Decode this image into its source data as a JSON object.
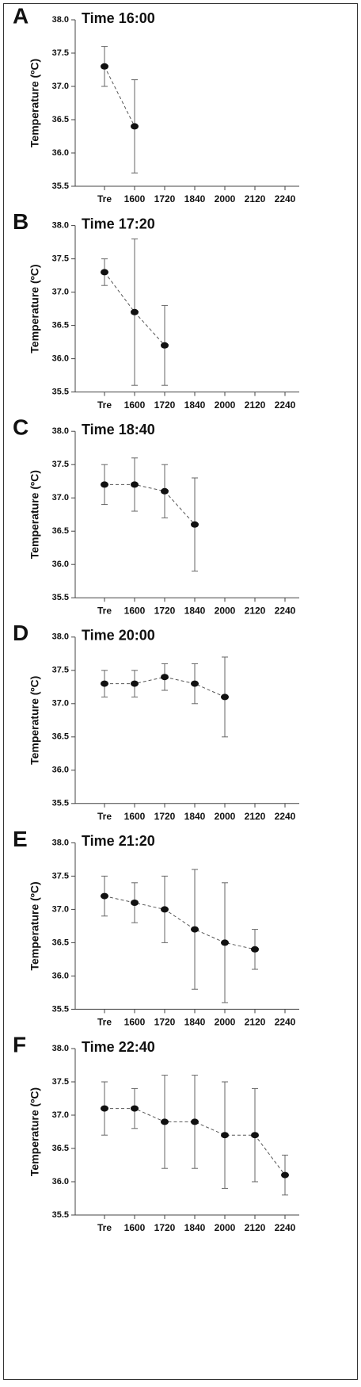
{
  "chart_data": [
    {
      "type": "line",
      "label": "A",
      "title": "Time 16:00",
      "y_label": "Temperature (ºC)",
      "categories": [
        "Tre",
        "1600",
        "1720",
        "1840",
        "2000",
        "2120",
        "2240"
      ],
      "values": [
        37.3,
        36.4,
        null,
        null,
        null,
        null,
        null
      ],
      "errors": [
        0.3,
        0.7,
        null,
        null,
        null,
        null,
        null
      ],
      "color": "#111111",
      "ylim": [
        35.5,
        38.0
      ],
      "yticks": [
        {
          "value": 38.0,
          "label": "38.0"
        },
        37.5,
        {
          "value": 37.0,
          "label": "37.0"
        },
        36.5,
        {
          "value": 36.0,
          "label": "36.0"
        },
        35.5
      ]
    },
    {
      "type": "line",
      "label": "B",
      "title": "Time 17:20",
      "y_label": "Temperature (ºC)",
      "categories": [
        "Tre",
        "1600",
        "1720",
        "1840",
        "2000",
        "2120",
        "2240"
      ],
      "values": [
        37.3,
        36.7,
        36.2,
        null,
        null,
        null,
        null
      ],
      "errors": [
        0.2,
        1.1,
        0.6,
        null,
        null,
        null,
        null
      ],
      "color": "#111111",
      "ylim": [
        35.5,
        38.0
      ],
      "yticks": [
        {
          "value": 38.0,
          "label": "38.0"
        },
        37.5,
        {
          "value": 37.0,
          "label": "37.0"
        },
        36.5,
        {
          "value": 36.0,
          "label": "36.0"
        },
        35.5
      ]
    },
    {
      "type": "line",
      "label": "C",
      "title": "Time 18:40",
      "y_label": "Temperature (ºC)",
      "categories": [
        "Tre",
        "1600",
        "1720",
        "1840",
        "2000",
        "2120",
        "2240"
      ],
      "values": [
        37.2,
        37.2,
        37.1,
        36.6,
        null,
        null,
        null
      ],
      "errors": [
        0.3,
        0.4,
        0.4,
        0.7,
        null,
        null,
        null
      ],
      "color": "#111111",
      "ylim": [
        35.5,
        38.0
      ],
      "yticks": [
        {
          "value": 38.0,
          "label": "38.0"
        },
        37.5,
        {
          "value": 37.0,
          "label": "37.0"
        },
        36.5,
        {
          "value": 36.0,
          "label": "36.0"
        },
        35.5
      ]
    },
    {
      "type": "line",
      "label": "D",
      "title": "Time 20:00",
      "y_label": "Temperature (ºC)",
      "categories": [
        "Tre",
        "1600",
        "1720",
        "1840",
        "2000",
        "2120",
        "2240"
      ],
      "values": [
        37.3,
        37.3,
        37.4,
        37.3,
        37.1,
        null,
        null
      ],
      "errors": [
        0.2,
        0.2,
        0.2,
        0.3,
        0.6,
        null,
        null
      ],
      "color": "#111111",
      "ylim": [
        35.5,
        38.0
      ],
      "yticks": [
        {
          "value": 38.0,
          "label": "38.0"
        },
        37.5,
        {
          "value": 37.0,
          "label": "37.0"
        },
        36.5,
        {
          "value": 36.0,
          "label": "36.0"
        },
        35.5
      ]
    },
    {
      "type": "line",
      "label": "E",
      "title": "Time 21:20",
      "y_label": "Temperature (ºC)",
      "categories": [
        "Tre",
        "1600",
        "1720",
        "1840",
        "2000",
        "2120",
        "2240"
      ],
      "values": [
        37.2,
        37.1,
        37.0,
        36.7,
        36.5,
        36.4,
        null
      ],
      "errors": [
        0.3,
        0.3,
        0.5,
        0.9,
        0.9,
        0.3,
        null
      ],
      "color": "#111111",
      "ylim": [
        35.5,
        38.0
      ],
      "yticks": [
        {
          "value": 38.0,
          "label": "38.0"
        },
        37.5,
        {
          "value": 37.0,
          "label": "37.0"
        },
        36.5,
        {
          "value": 36.0,
          "label": "36.0"
        },
        35.5
      ]
    },
    {
      "type": "line",
      "label": "F",
      "title": "Time 22:40",
      "y_label": "Temperature (ºC)",
      "categories": [
        "Tre",
        "1600",
        "1720",
        "1840",
        "2000",
        "2120",
        "2240"
      ],
      "values": [
        37.1,
        37.1,
        36.9,
        36.9,
        36.7,
        36.7,
        36.1
      ],
      "errors": [
        0.4,
        0.3,
        0.7,
        0.7,
        0.8,
        0.7,
        0.3
      ],
      "color": "#111111",
      "ylim": [
        35.5,
        38.0
      ],
      "yticks": [
        {
          "value": 38.0,
          "label": "38.0"
        },
        37.5,
        {
          "value": 37.0,
          "label": "37.0"
        },
        36.5,
        {
          "value": 36.0,
          "label": "36.0"
        },
        35.5
      ]
    }
  ]
}
